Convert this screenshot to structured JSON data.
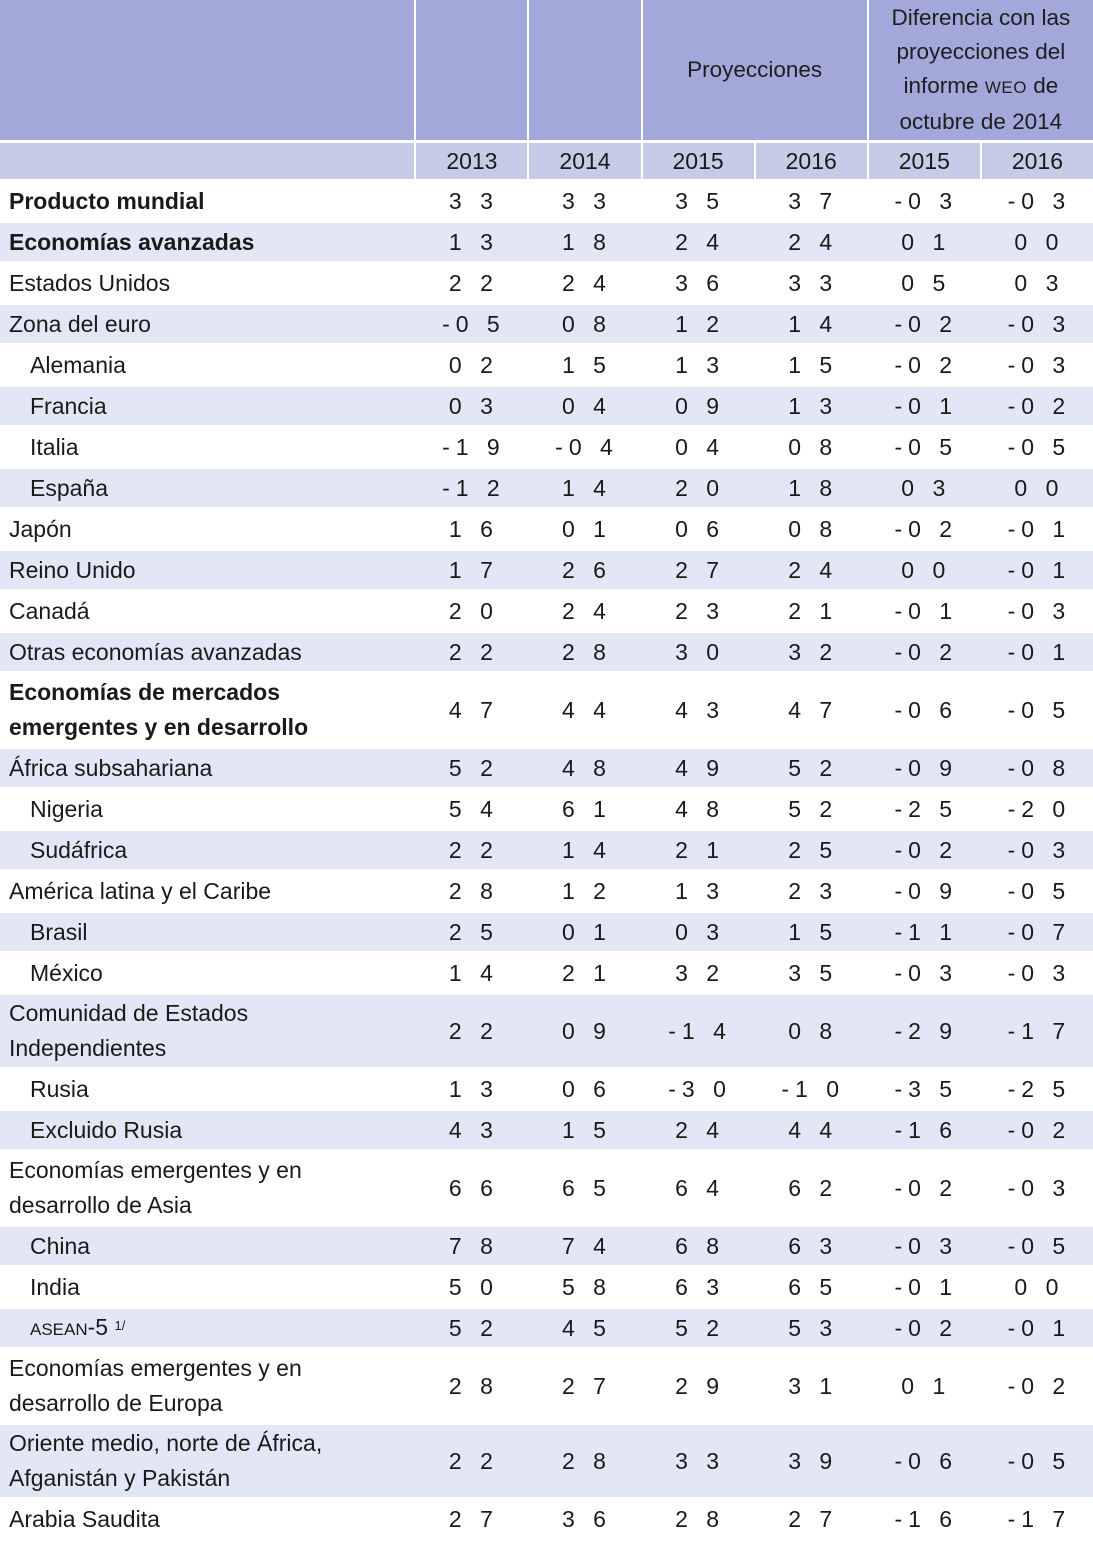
{
  "header": {
    "projections_label": "Proyecciones",
    "difference_label_part1": "Diferencia con las proyecciones del informe",
    "difference_label_weo": "WEO",
    "difference_label_part2": "de octubre de 2014",
    "years": [
      "2013",
      "2014",
      "2015",
      "2016",
      "2015",
      "2016"
    ]
  },
  "rows": [
    {
      "label": "Producto mundial",
      "bold": true,
      "indent": false,
      "values": [
        "3 3",
        "3 3",
        "3 5",
        "3 7",
        "-0 3",
        "-0 3"
      ]
    },
    {
      "label": "Economías avanzadas",
      "bold": true,
      "indent": false,
      "values": [
        "1 3",
        "1 8",
        "2 4",
        "2 4",
        "0 1",
        "0 0"
      ]
    },
    {
      "label": "Estados Unidos",
      "bold": false,
      "indent": false,
      "values": [
        "2 2",
        "2 4",
        "3 6",
        "3 3",
        "0 5",
        "0 3"
      ]
    },
    {
      "label": "Zona del euro",
      "bold": false,
      "indent": false,
      "values": [
        "-0 5",
        "0 8",
        "1 2",
        "1 4",
        "-0 2",
        "-0 3"
      ]
    },
    {
      "label": "Alemania",
      "bold": false,
      "indent": true,
      "values": [
        "0 2",
        "1 5",
        "1 3",
        "1 5",
        "-0 2",
        "-0 3"
      ]
    },
    {
      "label": "Francia",
      "bold": false,
      "indent": true,
      "values": [
        "0 3",
        "0 4",
        "0 9",
        "1 3",
        "-0 1",
        "-0 2"
      ]
    },
    {
      "label": "Italia",
      "bold": false,
      "indent": true,
      "values": [
        "-1 9",
        "-0 4",
        "0 4",
        "0 8",
        "-0 5",
        "-0 5"
      ]
    },
    {
      "label": "España",
      "bold": false,
      "indent": true,
      "values": [
        "-1 2",
        "1 4",
        "2 0",
        "1 8",
        "0 3",
        "0 0"
      ]
    },
    {
      "label": "Japón",
      "bold": false,
      "indent": false,
      "values": [
        "1 6",
        "0 1",
        "0 6",
        "0 8",
        "-0 2",
        "-0 1"
      ]
    },
    {
      "label": "Reino Unido",
      "bold": false,
      "indent": false,
      "values": [
        "1 7",
        "2 6",
        "2 7",
        "2 4",
        "0 0",
        "-0 1"
      ]
    },
    {
      "label": "Canadá",
      "bold": false,
      "indent": false,
      "values": [
        "2 0",
        "2 4",
        "2 3",
        "2 1",
        "-0 1",
        "-0 3"
      ]
    },
    {
      "label": "Otras economías avanzadas",
      "bold": false,
      "indent": false,
      "values": [
        "2 2",
        "2 8",
        "3 0",
        "3 2",
        "-0 2",
        "-0 1"
      ]
    },
    {
      "label_line1": "Economías de mercados",
      "label_line2": "emergentes y en desarrollo",
      "bold": true,
      "indent": false,
      "values": [
        "4 7",
        "4 4",
        "4 3",
        "4 7",
        "-0 6",
        "-0 5"
      ]
    },
    {
      "label": "África subsahariana",
      "bold": false,
      "indent": false,
      "values": [
        "5 2",
        "4 8",
        "4 9",
        "5 2",
        "-0 9",
        "-0 8"
      ]
    },
    {
      "label": "Nigeria",
      "bold": false,
      "indent": true,
      "values": [
        "5 4",
        "6 1",
        "4 8",
        "5 2",
        "-2 5",
        "-2 0"
      ]
    },
    {
      "label": "Sudáfrica",
      "bold": false,
      "indent": true,
      "values": [
        "2 2",
        "1 4",
        "2 1",
        "2 5",
        "-0 2",
        "-0 3"
      ]
    },
    {
      "label": "América latina y el Caribe",
      "bold": false,
      "indent": false,
      "values": [
        "2 8",
        "1 2",
        "1 3",
        "2 3",
        "-0 9",
        "-0 5"
      ]
    },
    {
      "label": "Brasil",
      "bold": false,
      "indent": true,
      "values": [
        "2 5",
        "0 1",
        "0 3",
        "1 5",
        "-1 1",
        "-0 7"
      ]
    },
    {
      "label": "México",
      "bold": false,
      "indent": true,
      "values": [
        "1 4",
        "2 1",
        "3 2",
        "3 5",
        "-0 3",
        "-0 3"
      ]
    },
    {
      "label_line1": "Comunidad de Estados",
      "label_line2": "Independientes",
      "bold": false,
      "indent": false,
      "values": [
        "2 2",
        "0 9",
        "-1 4",
        "0 8",
        "-2 9",
        "-1 7"
      ]
    },
    {
      "label": "Rusia",
      "bold": false,
      "indent": true,
      "values": [
        "1 3",
        "0 6",
        "-3 0",
        "-1 0",
        "-3 5",
        "-2 5"
      ]
    },
    {
      "label": "Excluido Rusia",
      "bold": false,
      "indent": true,
      "values": [
        "4 3",
        "1 5",
        "2 4",
        "4 4",
        "-1 6",
        "-0 2"
      ]
    },
    {
      "label_line1": "Economías emergentes y en",
      "label_line2": "desarrollo de Asia",
      "bold": false,
      "indent": false,
      "values": [
        "6 6",
        "6 5",
        "6 4",
        "6 2",
        "-0 2",
        "-0 3"
      ]
    },
    {
      "label": "China",
      "bold": false,
      "indent": true,
      "values": [
        "7 8",
        "7 4",
        "6 8",
        "6 3",
        "-0 3",
        "-0 5"
      ]
    },
    {
      "label": "India",
      "bold": false,
      "indent": true,
      "values": [
        "5 0",
        "5 8",
        "6 3",
        "6 5",
        "-0 1",
        "0 0"
      ]
    },
    {
      "label_small": "ASEAN",
      "label_rest": "-5",
      "label_sup": "1/",
      "bold": false,
      "indent": true,
      "values": [
        "5 2",
        "4 5",
        "5 2",
        "5 3",
        "-0 2",
        "-0 1"
      ]
    },
    {
      "label_line1": "Economías emergentes y en",
      "label_line2": "desarrollo de Europa",
      "bold": false,
      "indent": false,
      "values": [
        "2 8",
        "2 7",
        "2 9",
        "3 1",
        "0 1",
        "-0 2"
      ]
    },
    {
      "label_line1": "Oriente medio, norte de África,",
      "label_line2": "Afganistán y Pakistán",
      "bold": false,
      "indent": false,
      "values": [
        "2 2",
        "2 8",
        "3 3",
        "3 9",
        "-0 6",
        "-0 5"
      ]
    },
    {
      "label": "Arabia Saudita",
      "bold": false,
      "indent": false,
      "values": [
        "2 7",
        "3 6",
        "2 8",
        "2 7",
        "-1 6",
        "-1 7"
      ]
    }
  ]
}
